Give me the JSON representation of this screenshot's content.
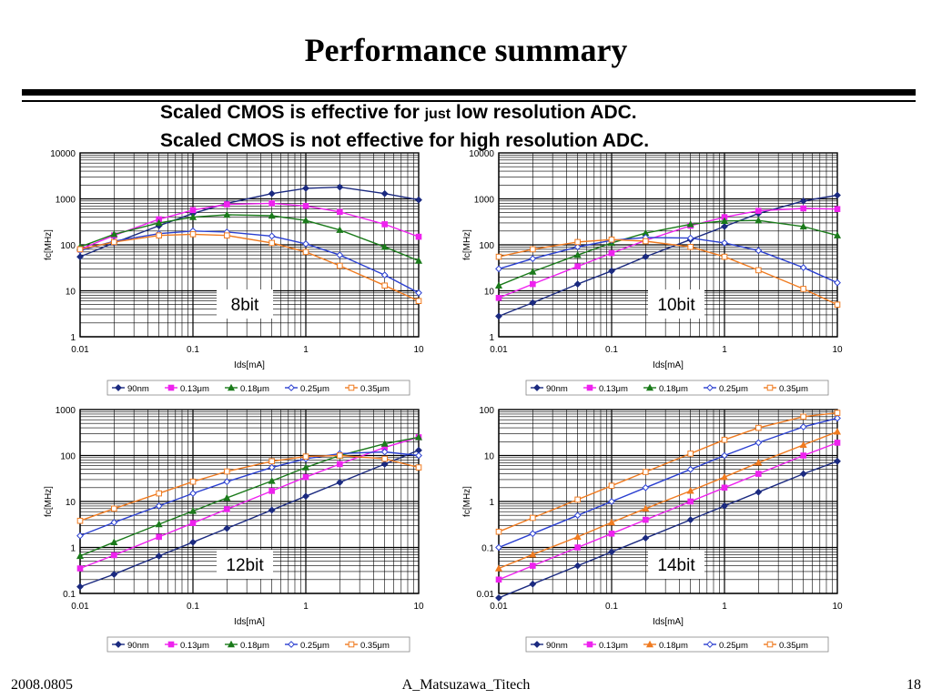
{
  "title": "Performance summary",
  "subtitle": {
    "line1_pre": "Scaled CMOS is effective for ",
    "line1_small": "just",
    "line1_post": " low resolution ADC.",
    "line2": "Scaled CMOS is not effective for high resolution ADC."
  },
  "footer": {
    "date": "2008.0805",
    "author": "A_Matsuzawa_Titech",
    "page": "18"
  },
  "chart_data": [
    {
      "type": "line",
      "label": "8bit",
      "xlog": true,
      "ylog": true,
      "xlim": [
        0.01,
        10
      ],
      "ylim": [
        1,
        10000
      ],
      "xticks": [
        "0.01",
        "0.1",
        "1",
        "10"
      ],
      "yticks": [
        "1",
        "10",
        "100",
        "1000",
        "10000"
      ],
      "xlabel": "Ids[mA]",
      "ylabel": "fc[MHz]",
      "grid": true,
      "legend": "bottom",
      "series": [
        {
          "name": "90nm",
          "color": "#1b2a80",
          "marker": "diamond",
          "points": [
            [
              0.01,
              55
            ],
            [
              0.02,
              110
            ],
            [
              0.05,
              260
            ],
            [
              0.1,
              480
            ],
            [
              0.2,
              800
            ],
            [
              0.5,
              1300
            ],
            [
              1,
              1700
            ],
            [
              2,
              1800
            ],
            [
              5,
              1300
            ],
            [
              10,
              950
            ]
          ]
        },
        {
          "name": "0.13μm",
          "color": "#ee22ee",
          "marker": "square",
          "points": [
            [
              0.01,
              80
            ],
            [
              0.02,
              160
            ],
            [
              0.05,
              360
            ],
            [
              0.1,
              570
            ],
            [
              0.2,
              760
            ],
            [
              0.5,
              800
            ],
            [
              1,
              700
            ],
            [
              2,
              520
            ],
            [
              5,
              280
            ],
            [
              10,
              150
            ]
          ]
        },
        {
          "name": "0.18μm",
          "color": "#1a7a1a",
          "marker": "triangle",
          "points": [
            [
              0.01,
              90
            ],
            [
              0.02,
              170
            ],
            [
              0.05,
              300
            ],
            [
              0.1,
              400
            ],
            [
              0.2,
              450
            ],
            [
              0.5,
              430
            ],
            [
              1,
              340
            ],
            [
              2,
              210
            ],
            [
              5,
              90
            ],
            [
              10,
              45
            ]
          ]
        },
        {
          "name": "0.25μm",
          "color": "#2a3fd0",
          "marker": "diamond-open",
          "points": [
            [
              0.01,
              75
            ],
            [
              0.02,
              120
            ],
            [
              0.05,
              175
            ],
            [
              0.1,
              200
            ],
            [
              0.2,
              190
            ],
            [
              0.5,
              155
            ],
            [
              1,
              105
            ],
            [
              2,
              60
            ],
            [
              5,
              22
            ],
            [
              10,
              9
            ]
          ]
        },
        {
          "name": "0.35μm",
          "color": "#f07b20",
          "marker": "square-open",
          "points": [
            [
              0.01,
              80
            ],
            [
              0.02,
              115
            ],
            [
              0.05,
              160
            ],
            [
              0.1,
              170
            ],
            [
              0.2,
              160
            ],
            [
              0.5,
              110
            ],
            [
              1,
              70
            ],
            [
              2,
              35
            ],
            [
              5,
              13
            ],
            [
              10,
              6
            ]
          ]
        }
      ]
    },
    {
      "type": "line",
      "label": "10bit",
      "xlog": true,
      "ylog": true,
      "xlim": [
        0.01,
        10
      ],
      "ylim": [
        1,
        10000
      ],
      "xticks": [
        "0.01",
        "0.1",
        "1",
        "10"
      ],
      "yticks": [
        "1",
        "10",
        "100",
        "1000",
        "10000"
      ],
      "xlabel": "Ids[mA]",
      "ylabel": "fc[MHz]",
      "grid": true,
      "legend": "bottom",
      "series": [
        {
          "name": "90nm",
          "color": "#1b2a80",
          "marker": "diamond",
          "points": [
            [
              0.01,
              2.8
            ],
            [
              0.02,
              5.5
            ],
            [
              0.05,
              14
            ],
            [
              0.1,
              27
            ],
            [
              0.2,
              55
            ],
            [
              0.5,
              130
            ],
            [
              1,
              250
            ],
            [
              2,
              480
            ],
            [
              5,
              900
            ],
            [
              10,
              1200
            ]
          ]
        },
        {
          "name": "0.13μm",
          "color": "#ee22ee",
          "marker": "square",
          "points": [
            [
              0.01,
              7
            ],
            [
              0.02,
              14
            ],
            [
              0.05,
              34
            ],
            [
              0.1,
              66
            ],
            [
              0.2,
              125
            ],
            [
              0.5,
              260
            ],
            [
              1,
              400
            ],
            [
              2,
              550
            ],
            [
              5,
              620
            ],
            [
              10,
              600
            ]
          ]
        },
        {
          "name": "0.18μm",
          "color": "#1a7a1a",
          "marker": "triangle",
          "points": [
            [
              0.01,
              13
            ],
            [
              0.02,
              26
            ],
            [
              0.05,
              60
            ],
            [
              0.1,
              110
            ],
            [
              0.2,
              180
            ],
            [
              0.5,
              280
            ],
            [
              1,
              330
            ],
            [
              2,
              340
            ],
            [
              5,
              250
            ],
            [
              10,
              160
            ]
          ]
        },
        {
          "name": "0.25μm",
          "color": "#2a3fd0",
          "marker": "diamond-open",
          "points": [
            [
              0.01,
              30
            ],
            [
              0.02,
              50
            ],
            [
              0.05,
              90
            ],
            [
              0.1,
              125
            ],
            [
              0.2,
              145
            ],
            [
              0.5,
              140
            ],
            [
              1,
              110
            ],
            [
              2,
              75
            ],
            [
              5,
              32
            ],
            [
              10,
              15
            ]
          ]
        },
        {
          "name": "0.35μm",
          "color": "#f07b20",
          "marker": "square-open",
          "points": [
            [
              0.01,
              55
            ],
            [
              0.02,
              80
            ],
            [
              0.05,
              115
            ],
            [
              0.1,
              130
            ],
            [
              0.2,
              120
            ],
            [
              0.5,
              90
            ],
            [
              1,
              55
            ],
            [
              2,
              28
            ],
            [
              5,
              11
            ],
            [
              10,
              5
            ]
          ]
        }
      ]
    },
    {
      "type": "line",
      "label": "12bit",
      "xlog": true,
      "ylog": true,
      "xlim": [
        0.01,
        10
      ],
      "ylim": [
        0.1,
        1000
      ],
      "xticks": [
        "0.01",
        "0.1",
        "1",
        "10"
      ],
      "yticks": [
        "0.1",
        "1",
        "10",
        "100",
        "1000"
      ],
      "xlabel": "Ids[mA]",
      "ylabel": "fc[MHz]",
      "grid": true,
      "legend": "bottom",
      "series": [
        {
          "name": "90nm",
          "color": "#1b2a80",
          "marker": "diamond",
          "points": [
            [
              0.01,
              0.14
            ],
            [
              0.02,
              0.26
            ],
            [
              0.05,
              0.65
            ],
            [
              0.1,
              1.3
            ],
            [
              0.2,
              2.6
            ],
            [
              0.5,
              6.5
            ],
            [
              1,
              13
            ],
            [
              2,
              26
            ],
            [
              5,
              65
            ],
            [
              10,
              130
            ]
          ]
        },
        {
          "name": "0.13μm",
          "color": "#ee22ee",
          "marker": "square",
          "points": [
            [
              0.01,
              0.35
            ],
            [
              0.02,
              0.68
            ],
            [
              0.05,
              1.7
            ],
            [
              0.1,
              3.4
            ],
            [
              0.2,
              6.8
            ],
            [
              0.5,
              17
            ],
            [
              1,
              34
            ],
            [
              2,
              65
            ],
            [
              5,
              150
            ],
            [
              10,
              250
            ]
          ]
        },
        {
          "name": "0.18μm",
          "color": "#1a7a1a",
          "marker": "triangle",
          "points": [
            [
              0.01,
              0.65
            ],
            [
              0.02,
              1.3
            ],
            [
              0.05,
              3.2
            ],
            [
              0.1,
              6.2
            ],
            [
              0.2,
              12
            ],
            [
              0.5,
              28
            ],
            [
              1,
              55
            ],
            [
              2,
              100
            ],
            [
              5,
              180
            ],
            [
              10,
              250
            ]
          ]
        },
        {
          "name": "0.25μm",
          "color": "#2a3fd0",
          "marker": "diamond-open",
          "points": [
            [
              0.01,
              1.8
            ],
            [
              0.02,
              3.5
            ],
            [
              0.05,
              8
            ],
            [
              0.1,
              15
            ],
            [
              0.2,
              27
            ],
            [
              0.5,
              55
            ],
            [
              1,
              85
            ],
            [
              2,
              110
            ],
            [
              5,
              120
            ],
            [
              10,
              100
            ]
          ]
        },
        {
          "name": "0.35μm",
          "color": "#f07b20",
          "marker": "square-open",
          "points": [
            [
              0.01,
              3.8
            ],
            [
              0.02,
              7
            ],
            [
              0.05,
              15
            ],
            [
              0.1,
              27
            ],
            [
              0.2,
              45
            ],
            [
              0.5,
              75
            ],
            [
              1,
              95
            ],
            [
              2,
              100
            ],
            [
              5,
              85
            ],
            [
              10,
              55
            ]
          ]
        }
      ]
    },
    {
      "type": "line",
      "label": "14bit",
      "xlog": true,
      "ylog": true,
      "xlim": [
        0.01,
        10
      ],
      "ylim": [
        0.01,
        100
      ],
      "xticks": [
        "0.01",
        "0.1",
        "1",
        "10"
      ],
      "yticks": [
        "0.01",
        "0.1",
        "1",
        "10",
        "100"
      ],
      "xlabel": "Ids[mA]",
      "ylabel": "fc[MHz]",
      "grid": true,
      "legend": "bottom",
      "series": [
        {
          "name": "90nm",
          "color": "#1b2a80",
          "marker": "diamond",
          "points": [
            [
              0.01,
              0.008
            ],
            [
              0.02,
              0.016
            ],
            [
              0.05,
              0.04
            ],
            [
              0.1,
              0.08
            ],
            [
              0.2,
              0.16
            ],
            [
              0.5,
              0.4
            ],
            [
              1,
              0.8
            ],
            [
              2,
              1.6
            ],
            [
              5,
              4
            ],
            [
              10,
              7.5
            ]
          ]
        },
        {
          "name": "0.13μm",
          "color": "#ee22ee",
          "marker": "square",
          "points": [
            [
              0.01,
              0.02
            ],
            [
              0.02,
              0.04
            ],
            [
              0.05,
              0.1
            ],
            [
              0.1,
              0.2
            ],
            [
              0.2,
              0.4
            ],
            [
              0.5,
              1
            ],
            [
              1,
              2
            ],
            [
              2,
              4
            ],
            [
              5,
              10
            ],
            [
              10,
              19
            ]
          ]
        },
        {
          "name": "0.18μm",
          "color": "#f07b20",
          "marker": "triangle",
          "points": [
            [
              0.01,
              0.035
            ],
            [
              0.02,
              0.07
            ],
            [
              0.05,
              0.17
            ],
            [
              0.1,
              0.35
            ],
            [
              0.2,
              0.7
            ],
            [
              0.5,
              1.7
            ],
            [
              1,
              3.4
            ],
            [
              2,
              7
            ],
            [
              5,
              17
            ],
            [
              10,
              33
            ]
          ]
        },
        {
          "name": "0.25μm",
          "color": "#2a3fd0",
          "marker": "diamond-open",
          "points": [
            [
              0.01,
              0.1
            ],
            [
              0.02,
              0.2
            ],
            [
              0.05,
              0.5
            ],
            [
              0.1,
              1
            ],
            [
              0.2,
              2
            ],
            [
              0.5,
              5
            ],
            [
              1,
              10
            ],
            [
              2,
              19
            ],
            [
              5,
              42
            ],
            [
              10,
              65
            ]
          ]
        },
        {
          "name": "0.35μm",
          "color": "#f07b20",
          "marker": "square-open",
          "points": [
            [
              0.01,
              0.22
            ],
            [
              0.02,
              0.44
            ],
            [
              0.05,
              1.1
            ],
            [
              0.1,
              2.2
            ],
            [
              0.2,
              4.4
            ],
            [
              0.5,
              11
            ],
            [
              1,
              22
            ],
            [
              2,
              40
            ],
            [
              5,
              70
            ],
            [
              10,
              85
            ]
          ]
        }
      ]
    }
  ]
}
